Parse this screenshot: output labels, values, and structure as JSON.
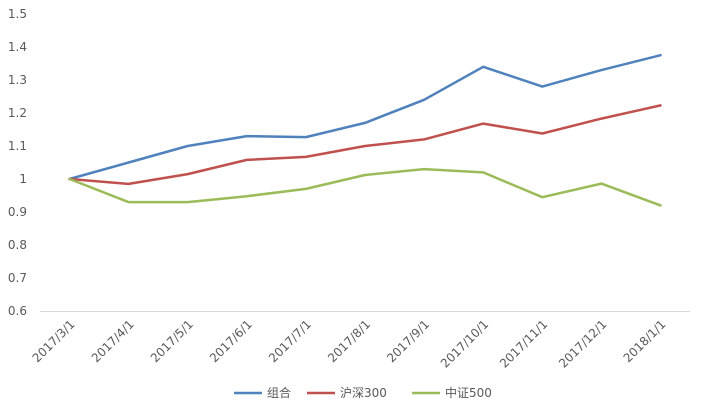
{
  "chart_data": {
    "type": "line",
    "categories": [
      "2017/3/1",
      "2017/4/1",
      "2017/5/1",
      "2017/6/1",
      "2017/7/1",
      "2017/8/1",
      "2017/9/1",
      "2017/10/1",
      "2017/11/1",
      "2017/12/1",
      "2018/1/1"
    ],
    "series": [
      {
        "name": "组合",
        "color": "#4f81bd",
        "values": [
          1.0,
          1.05,
          1.1,
          1.13,
          1.127,
          1.17,
          1.24,
          1.34,
          1.28,
          1.33,
          1.375
        ]
      },
      {
        "name": "沪深300",
        "color": "#c0504d",
        "values": [
          1.0,
          0.985,
          1.015,
          1.058,
          1.067,
          1.1,
          1.12,
          1.168,
          1.138,
          1.183,
          1.223
        ]
      },
      {
        "name": "中证500",
        "color": "#9bbb59",
        "values": [
          1.0,
          0.93,
          0.93,
          0.948,
          0.97,
          1.012,
          1.03,
          1.02,
          0.945,
          0.986,
          0.92
        ]
      }
    ],
    "yticks": [
      "0.6",
      "0.7",
      "0.8",
      "0.9",
      "1",
      "1.1",
      "1.2",
      "1.3",
      "1.4",
      "1.5"
    ],
    "ylim": [
      0.6,
      1.5
    ],
    "title": "",
    "xlabel": "",
    "ylabel": "",
    "grid": false,
    "legend_position": "bottom"
  }
}
